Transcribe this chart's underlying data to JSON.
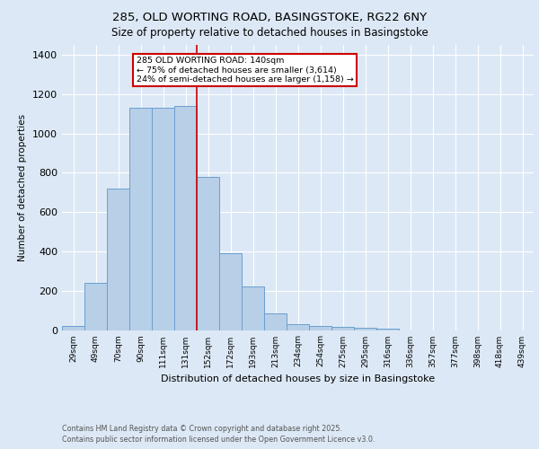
{
  "title1": "285, OLD WORTING ROAD, BASINGSTOKE, RG22 6NY",
  "title2": "Size of property relative to detached houses in Basingstoke",
  "xlabel": "Distribution of detached houses by size in Basingstoke",
  "ylabel": "Number of detached properties",
  "categories": [
    "29sqm",
    "49sqm",
    "70sqm",
    "90sqm",
    "111sqm",
    "131sqm",
    "152sqm",
    "172sqm",
    "193sqm",
    "213sqm",
    "234sqm",
    "254sqm",
    "275sqm",
    "295sqm",
    "316sqm",
    "336sqm",
    "357sqm",
    "377sqm",
    "398sqm",
    "418sqm",
    "439sqm"
  ],
  "values": [
    20,
    240,
    720,
    1130,
    1130,
    1140,
    780,
    390,
    220,
    85,
    30,
    22,
    18,
    12,
    7,
    0,
    0,
    0,
    0,
    0,
    0
  ],
  "bar_color": "#b8cfe8",
  "bar_edge_color": "#6aa0d0",
  "annotation_text": "285 OLD WORTING ROAD: 140sqm\n← 75% of detached houses are smaller (3,614)\n24% of semi-detached houses are larger (1,158) →",
  "vline_x": 5.5,
  "annotation_box_facecolor": "#ffffff",
  "annotation_box_edgecolor": "#cc0000",
  "vline_color": "#cc0000",
  "background_color": "#dce8f5",
  "plot_bg_color": "#dce8f5",
  "grid_color": "#ffffff",
  "ylim": [
    0,
    1450
  ],
  "yticks": [
    0,
    200,
    400,
    600,
    800,
    1000,
    1200,
    1400
  ],
  "footer1": "Contains HM Land Registry data © Crown copyright and database right 2025.",
  "footer2": "Contains public sector information licensed under the Open Government Licence v3.0."
}
